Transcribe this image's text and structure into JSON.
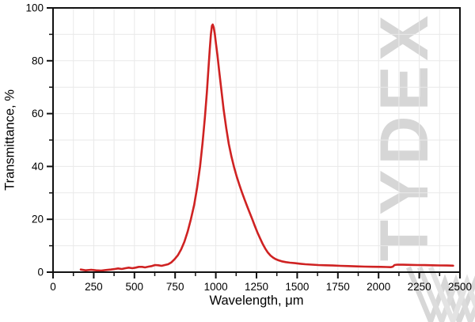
{
  "watermark": {
    "text": "TYDEX",
    "color": "rgba(70,70,70,0.22)"
  },
  "logo": {
    "name": "tydex-w-logo",
    "color": "#d7d7d7"
  },
  "chart_data": {
    "type": "line",
    "title": "",
    "xlabel": "Wavelength, μm",
    "ylabel": "Transmittance, %",
    "xlim": [
      0,
      2500
    ],
    "ylim": [
      0,
      100
    ],
    "x_ticks": [
      0,
      250,
      500,
      750,
      1000,
      1250,
      1500,
      1750,
      2000,
      2250,
      2500
    ],
    "x_minor_step": 125,
    "y_ticks": [
      0,
      20,
      40,
      60,
      80,
      100
    ],
    "y_minor_step": 10,
    "grid": true,
    "grid_step_x": 125,
    "grid_step_y": 10,
    "grid_color": "#e9e9e9",
    "frame_color": "#111111",
    "legend": "none",
    "series": [
      {
        "color": "#cf2222",
        "points": [
          [
            170,
            1.0
          ],
          [
            200,
            0.7
          ],
          [
            235,
            0.9
          ],
          [
            265,
            0.7
          ],
          [
            295,
            0.6
          ],
          [
            325,
            0.8
          ],
          [
            355,
            1.0
          ],
          [
            380,
            1.2
          ],
          [
            400,
            1.4
          ],
          [
            422,
            1.2
          ],
          [
            445,
            1.5
          ],
          [
            465,
            1.7
          ],
          [
            487,
            1.5
          ],
          [
            507,
            1.7
          ],
          [
            527,
            2.0
          ],
          [
            547,
            2.0
          ],
          [
            565,
            1.8
          ],
          [
            587,
            2.1
          ],
          [
            607,
            2.3
          ],
          [
            627,
            2.7
          ],
          [
            647,
            2.6
          ],
          [
            667,
            2.4
          ],
          [
            687,
            2.7
          ],
          [
            707,
            3.0
          ],
          [
            727,
            3.7
          ],
          [
            747,
            4.9
          ],
          [
            767,
            6.4
          ],
          [
            787,
            8.6
          ],
          [
            807,
            11.5
          ],
          [
            827,
            15.3
          ],
          [
            847,
            20.0
          ],
          [
            867,
            25.5
          ],
          [
            885,
            32.0
          ],
          [
            903,
            40.0
          ],
          [
            919,
            49.0
          ],
          [
            933,
            58.5
          ],
          [
            945,
            68.0
          ],
          [
            955,
            77.0
          ],
          [
            963,
            84.5
          ],
          [
            970,
            90.0
          ],
          [
            976,
            93.2
          ],
          [
            981,
            93.7
          ],
          [
            987,
            92.7
          ],
          [
            994,
            90.0
          ],
          [
            1001,
            86.5
          ],
          [
            1010,
            82.0
          ],
          [
            1021,
            76.0
          ],
          [
            1034,
            69.0
          ],
          [
            1048,
            61.5
          ],
          [
            1064,
            54.5
          ],
          [
            1080,
            48.5
          ],
          [
            1096,
            43.8
          ],
          [
            1112,
            39.8
          ],
          [
            1128,
            36.3
          ],
          [
            1144,
            33.2
          ],
          [
            1160,
            30.3
          ],
          [
            1176,
            27.6
          ],
          [
            1192,
            25.0
          ],
          [
            1208,
            22.5
          ],
          [
            1224,
            20.0
          ],
          [
            1240,
            17.5
          ],
          [
            1256,
            15.0
          ],
          [
            1272,
            12.8
          ],
          [
            1288,
            10.7
          ],
          [
            1304,
            8.9
          ],
          [
            1320,
            7.4
          ],
          [
            1336,
            6.3
          ],
          [
            1352,
            5.5
          ],
          [
            1368,
            4.9
          ],
          [
            1385,
            4.5
          ],
          [
            1405,
            4.1
          ],
          [
            1430,
            3.8
          ],
          [
            1455,
            3.6
          ],
          [
            1485,
            3.4
          ],
          [
            1515,
            3.2
          ],
          [
            1550,
            3.0
          ],
          [
            1590,
            2.85
          ],
          [
            1630,
            2.7
          ],
          [
            1675,
            2.6
          ],
          [
            1720,
            2.5
          ],
          [
            1765,
            2.4
          ],
          [
            1815,
            2.3
          ],
          [
            1865,
            2.2
          ],
          [
            1915,
            2.1
          ],
          [
            1965,
            2.05
          ],
          [
            2015,
            2.0
          ],
          [
            2050,
            1.95
          ],
          [
            2075,
            1.9
          ],
          [
            2088,
            2.1
          ],
          [
            2098,
            2.7
          ],
          [
            2115,
            2.85
          ],
          [
            2150,
            2.8
          ],
          [
            2195,
            2.75
          ],
          [
            2240,
            2.7
          ],
          [
            2285,
            2.65
          ],
          [
            2330,
            2.6
          ],
          [
            2375,
            2.55
          ],
          [
            2420,
            2.5
          ],
          [
            2458,
            2.45
          ]
        ]
      }
    ]
  }
}
